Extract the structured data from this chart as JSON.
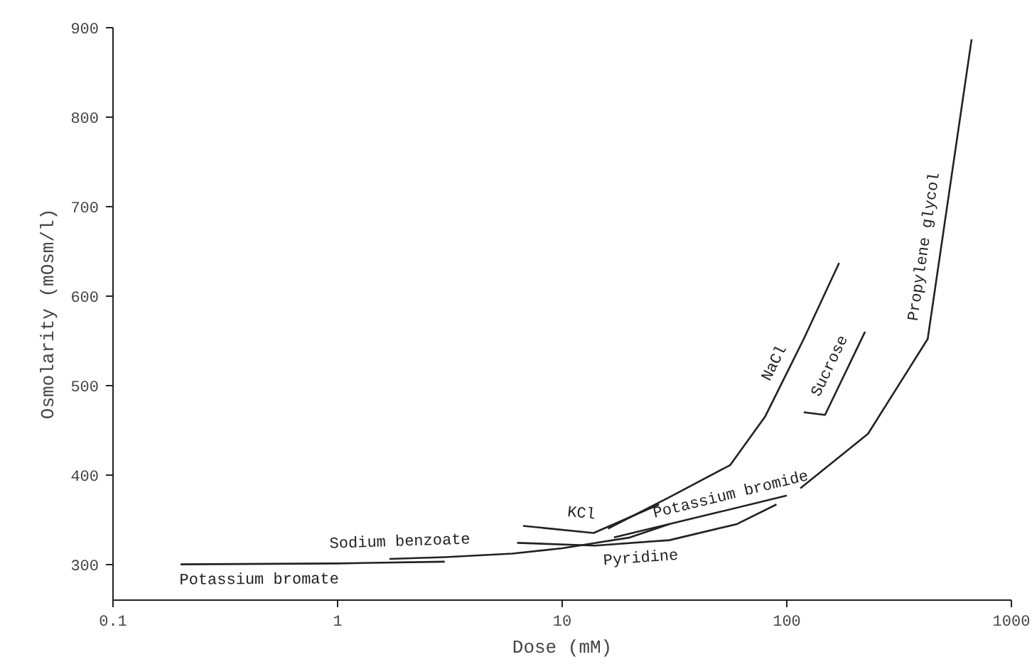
{
  "chart_data": {
    "type": "line",
    "xlabel": "Dose (mM)",
    "ylabel": "Osmolarity (mOsm/l)",
    "log": "x",
    "xlim": [
      0.1,
      1000
    ],
    "ylim": [
      260,
      900
    ],
    "xticks": [
      0.1,
      1,
      10,
      100,
      1000
    ],
    "yticks": [
      300,
      400,
      500,
      600,
      700,
      800,
      900
    ],
    "series": [
      {
        "name": "Potassium bromate",
        "color": "#222222",
        "x": [
          0.2,
          1,
          3
        ],
        "values": [
          300,
          301,
          303
        ]
      },
      {
        "name": "Sodium benzoate",
        "color": "#222222",
        "x": [
          1.7,
          3,
          6,
          10,
          20,
          30
        ],
        "values": [
          306,
          308,
          312,
          318,
          330,
          345
        ]
      },
      {
        "name": "Pyridine",
        "color": "#222222",
        "x": [
          6.3,
          14,
          30,
          60,
          90
        ],
        "values": [
          324,
          321,
          327,
          345,
          367
        ]
      },
      {
        "name": "KCl",
        "color": "#222222",
        "x": [
          6.7,
          13.8,
          27
        ],
        "values": [
          343,
          335,
          367
        ]
      },
      {
        "name": "NaCl",
        "color": "#222222",
        "x": [
          16,
          30,
          56,
          80,
          119,
          171
        ],
        "values": [
          340,
          375,
          411,
          465,
          552,
          637
        ]
      },
      {
        "name": "Sucrose",
        "color": "#222222",
        "x": [
          119,
          148,
          223
        ],
        "values": [
          470,
          467,
          560
        ]
      },
      {
        "name": "Potassium bromide",
        "color": "#222222",
        "x": [
          17,
          51,
          100
        ],
        "values": [
          330,
          359,
          377
        ]
      },
      {
        "name": "Propylene glycol",
        "color": "#222222",
        "x": [
          115,
          230,
          424,
          665
        ],
        "values": [
          385,
          446,
          552,
          887
        ]
      }
    ]
  }
}
